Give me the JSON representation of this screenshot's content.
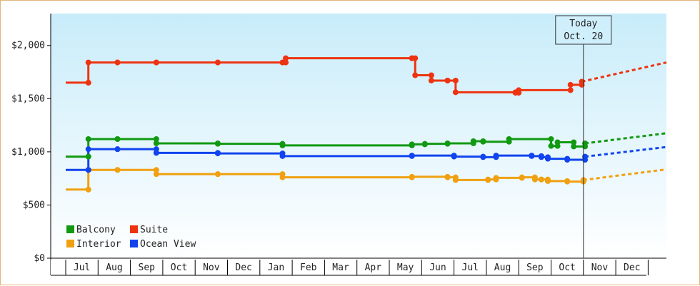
{
  "chart_data": {
    "type": "line",
    "step": true,
    "ylim": [
      0,
      2300
    ],
    "ytick_labels": [
      "$0",
      "$500",
      "$1,000",
      "$1,500",
      "$2,000"
    ],
    "yticks": [
      0,
      500,
      1000,
      1500,
      2000
    ],
    "months": [
      "Jul",
      "Aug",
      "Sep",
      "Oct",
      "Nov",
      "Dec",
      "Jan",
      "Feb",
      "Mar",
      "Apr",
      "May",
      "Jun",
      "Jul",
      "Aug",
      "Sep",
      "Oct",
      "Nov",
      "Dec"
    ],
    "today": {
      "line1": "Today",
      "line2": "Oct. 20",
      "month_index": 15.5
    },
    "grid": false,
    "legend_position": "bottom-left",
    "series": [
      {
        "name": "Balcony",
        "color": "#119911",
        "x": [
          -0.5,
          0.2,
          0.2,
          1.1,
          2.3,
          4.2,
          6.2,
          10.2,
          10.6,
          11.3,
          12.1,
          12.4,
          13.2,
          14.5,
          14.7,
          15.2,
          15.55
        ],
        "y": [
          955,
          955,
          1120,
          1120,
          1080,
          1075,
          1060,
          1070,
          1075,
          1080,
          1100,
          1095,
          1120,
          1055,
          1090,
          1050,
          1080
        ],
        "proj_end": 1175
      },
      {
        "name": "Suite",
        "color": "#ee3311",
        "x": [
          -0.5,
          0.2,
          0.2,
          1.1,
          2.3,
          4.2,
          6.2,
          6.3,
          10.2,
          10.3,
          10.8,
          11.3,
          11.55,
          13.4,
          13.5,
          15.1,
          15.45
        ],
        "y": [
          1650,
          1650,
          1840,
          1840,
          1840,
          1840,
          1840,
          1880,
          1880,
          1720,
          1670,
          1670,
          1560,
          1555,
          1580,
          1630,
          1660
        ],
        "proj_end": 1840
      },
      {
        "name": "Interior",
        "color": "#f0a010",
        "x": [
          -0.5,
          0.2,
          0.2,
          1.1,
          2.3,
          4.2,
          6.2,
          10.2,
          11.3,
          11.55,
          12.55,
          12.8,
          13.6,
          14.0,
          14.2,
          14.4,
          15.0,
          15.5
        ],
        "y": [
          645,
          645,
          830,
          830,
          790,
          790,
          760,
          765,
          760,
          735,
          740,
          755,
          760,
          740,
          740,
          725,
          720,
          735
        ],
        "proj_end": 835
      },
      {
        "name": "Ocean View",
        "color": "#1144ee",
        "x": [
          -0.5,
          0.2,
          0.2,
          1.1,
          2.3,
          4.2,
          6.2,
          10.2,
          11.5,
          12.4,
          12.8,
          13.9,
          14.2,
          14.4,
          15.0,
          15.55
        ],
        "y": [
          830,
          830,
          1025,
          1025,
          990,
          985,
          960,
          965,
          955,
          950,
          965,
          960,
          950,
          935,
          925,
          955
        ],
        "proj_end": 1045
      }
    ],
    "legend_order": [
      0,
      1,
      2,
      3
    ]
  }
}
